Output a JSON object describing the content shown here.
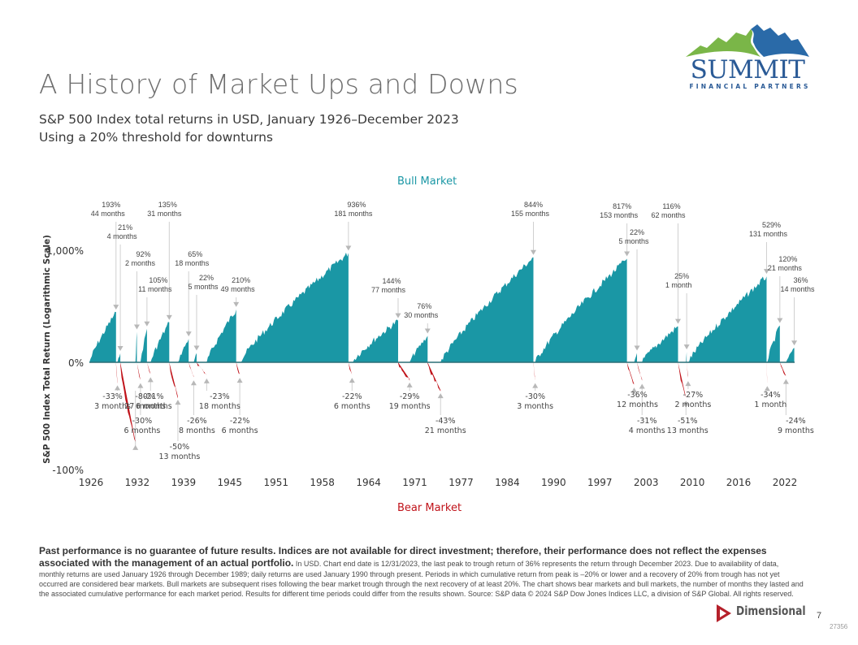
{
  "header": {
    "title": "A History of Market Ups and Downs",
    "subtitle_line1": "S&P 500 Index total returns in USD, January 1926–December 2023",
    "subtitle_line2": "Using a 20% threshold for downturns"
  },
  "logo": {
    "name": "SUMMIT",
    "tagline": "FINANCIAL PARTNERS",
    "colors": {
      "green": "#7ab648",
      "blue": "#2a6aa8"
    }
  },
  "chart_data": {
    "type": "area",
    "title": "A History of Market Ups and Downs",
    "ylabel": "S&P 500 Index Total Return (Logarithmic Scale)",
    "xlabel": "",
    "y_scale": "log",
    "y_ticks": [
      "1,000%",
      "0%",
      "-100%"
    ],
    "x_ticks": [
      "1926",
      "1932",
      "1939",
      "1945",
      "1951",
      "1958",
      "1964",
      "1971",
      "1977",
      "1984",
      "1990",
      "1997",
      "2003",
      "2010",
      "2016",
      "2022"
    ],
    "xlim": [
      1926,
      2024
    ],
    "legend": {
      "bull_label": "Bull Market",
      "bear_label": "Bear Market",
      "bull_position": "top-center",
      "bear_position": "bottom-center"
    },
    "colors": {
      "bull": "#1a97a5",
      "bear": "#c0131a",
      "baseline": "#2c6f76",
      "leader": "#d0d0d0",
      "marker": "#b8b8b8"
    },
    "bull_markets": [
      {
        "start": 1926.0,
        "end": 1929.7,
        "return_pct": 193,
        "months": 44,
        "label": "193%",
        "duration": "44 months"
      },
      {
        "start": 1929.9,
        "end": 1930.3,
        "return_pct": 21,
        "months": 4,
        "label": "21%",
        "duration": "4 months"
      },
      {
        "start": 1932.4,
        "end": 1932.6,
        "return_pct": 92,
        "months": 2,
        "label": "92%",
        "duration": "2 months"
      },
      {
        "start": 1933.1,
        "end": 1934.0,
        "return_pct": 105,
        "months": 11,
        "label": "105%",
        "duration": "11 months"
      },
      {
        "start": 1934.5,
        "end": 1937.1,
        "return_pct": 135,
        "months": 31,
        "label": "135%",
        "duration": "31 months"
      },
      {
        "start": 1938.3,
        "end": 1939.8,
        "return_pct": 65,
        "months": 18,
        "label": "65%",
        "duration": "18 months"
      },
      {
        "start": 1940.5,
        "end": 1940.9,
        "return_pct": 22,
        "months": 5,
        "label": "22%",
        "duration": "5 months"
      },
      {
        "start": 1942.3,
        "end": 1946.4,
        "return_pct": 210,
        "months": 49,
        "label": "210%",
        "duration": "49 months"
      },
      {
        "start": 1946.9,
        "end": 1962.0,
        "return_pct": 936,
        "months": 181,
        "label": "936%",
        "duration": "181 months"
      },
      {
        "start": 1962.5,
        "end": 1968.9,
        "return_pct": 144,
        "months": 77,
        "label": "144%",
        "duration": "77 months"
      },
      {
        "start": 1970.5,
        "end": 1973.0,
        "return_pct": 76,
        "months": 30,
        "label": "76%",
        "duration": "30 months"
      },
      {
        "start": 1974.8,
        "end": 1987.7,
        "return_pct": 844,
        "months": 155,
        "label": "844%",
        "duration": "155 months"
      },
      {
        "start": 1987.95,
        "end": 2000.7,
        "return_pct": 817,
        "months": 153,
        "label": "817%",
        "duration": "153 months"
      },
      {
        "start": 2001.7,
        "end": 2002.1,
        "return_pct": 22,
        "months": 5,
        "label": "22%",
        "duration": "5 months"
      },
      {
        "start": 2002.8,
        "end": 2007.8,
        "return_pct": 116,
        "months": 62,
        "label": "116%",
        "duration": "62 months"
      },
      {
        "start": 2008.9,
        "end": 2009.0,
        "return_pct": 25,
        "months": 1,
        "label": "25%",
        "duration": "1 month"
      },
      {
        "start": 2009.2,
        "end": 2020.1,
        "return_pct": 529,
        "months": 131,
        "label": "529%",
        "duration": "131 months"
      },
      {
        "start": 2020.2,
        "end": 2021.95,
        "return_pct": 120,
        "months": 21,
        "label": "120%",
        "duration": "21 months"
      },
      {
        "start": 2022.8,
        "end": 2023.95,
        "return_pct": 36,
        "months": 14,
        "label": "36%",
        "duration": "14 months"
      }
    ],
    "bear_markets": [
      {
        "start": 1929.7,
        "end": 1929.9,
        "return_pct": -33,
        "months": 3,
        "label": "-33%",
        "duration": "3 months"
      },
      {
        "start": 1930.3,
        "end": 1932.4,
        "return_pct": -80,
        "months": 27,
        "label": "-80%",
        "duration": "27 months"
      },
      {
        "start": 1932.6,
        "end": 1933.1,
        "return_pct": -30,
        "months": 6,
        "label": "-30%",
        "duration": "6 months"
      },
      {
        "start": 1934.0,
        "end": 1934.5,
        "return_pct": -21,
        "months": 6,
        "label": "-21%",
        "duration": "6 months"
      },
      {
        "start": 1937.1,
        "end": 1938.3,
        "return_pct": -50,
        "months": 13,
        "label": "-50%",
        "duration": "13 months"
      },
      {
        "start": 1939.8,
        "end": 1940.5,
        "return_pct": -26,
        "months": 8,
        "label": "-26%",
        "duration": "8 months"
      },
      {
        "start": 1940.9,
        "end": 1942.3,
        "return_pct": -23,
        "months": 18,
        "label": "-23%",
        "duration": "18 months"
      },
      {
        "start": 1946.4,
        "end": 1946.9,
        "return_pct": -22,
        "months": 6,
        "label": "-22%",
        "duration": "6 months"
      },
      {
        "start": 1962.0,
        "end": 1962.5,
        "return_pct": -22,
        "months": 6,
        "label": "-22%",
        "duration": "6 months"
      },
      {
        "start": 1968.9,
        "end": 1970.5,
        "return_pct": -29,
        "months": 19,
        "label": "-29%",
        "duration": "19 months"
      },
      {
        "start": 1973.0,
        "end": 1974.8,
        "return_pct": -43,
        "months": 21,
        "label": "-43%",
        "duration": "21 months"
      },
      {
        "start": 1987.7,
        "end": 1987.95,
        "return_pct": -30,
        "months": 3,
        "label": "-30%",
        "duration": "3 months"
      },
      {
        "start": 2000.7,
        "end": 2001.7,
        "return_pct": -36,
        "months": 12,
        "label": "-36%",
        "duration": "12 months"
      },
      {
        "start": 2002.1,
        "end": 2002.8,
        "return_pct": -31,
        "months": 4,
        "label": "-31%",
        "duration": "4 months"
      },
      {
        "start": 2007.8,
        "end": 2008.9,
        "return_pct": -51,
        "months": 13,
        "label": "-51%",
        "duration": "13 months"
      },
      {
        "start": 2009.0,
        "end": 2009.2,
        "return_pct": -27,
        "months": 2,
        "label": "-27%",
        "duration": "2 months"
      },
      {
        "start": 2020.1,
        "end": 2020.2,
        "return_pct": -34,
        "months": 1,
        "label": "-34%",
        "duration": "1 month"
      },
      {
        "start": 2021.95,
        "end": 2022.8,
        "return_pct": -24,
        "months": 9,
        "label": "-24%",
        "duration": "9 months"
      }
    ]
  },
  "footer": {
    "bold_text": "Past performance is no guarantee of future results. Indices are not available for direct investment; therefore, their performance does not reflect the expenses associated with the management of an actual portfolio.",
    "body_text": " In USD. Chart end date is 12/31/2023, the last peak to trough return of 36% represents the return through December 2023. Due to availability of data, monthly returns are used January 1926 through December 1989; daily returns are used January 1990 through present. Periods in which cumulative return from peak is –20% or lower and a recovery of 20% from trough has not yet occurred are considered bear markets. Bull markets are subsequent rises following the bear market trough through the next recovery of at least 20%. The chart shows bear markets and bull markets, the number of months they lasted and the associated cumulative performance for each market period. Results for different time periods could differ from the results shown. Source: S&P data © 2024 S&P Dow Jones Indices LLC, a division of S&P Global. All rights reserved."
  },
  "brand": {
    "name": "Dimensional",
    "color": "#b5202a"
  },
  "page_number": "7",
  "doc_code": "27356"
}
